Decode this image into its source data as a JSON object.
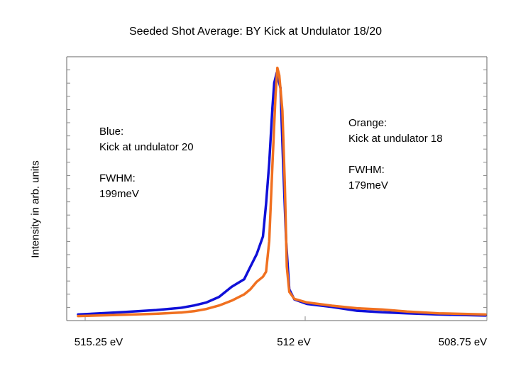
{
  "chart_data": {
    "type": "line",
    "title": "Seeded Shot Average: BY Kick at Undulator 18/20",
    "xlabel": "",
    "ylabel": "Intensity in arb. units",
    "xlim": [
      515.25,
      508.75
    ],
    "ylim": [
      0,
      1
    ],
    "x_tick_labels": [
      "515.25 eV",
      "512 eV",
      "508.75 eV"
    ],
    "grid": false,
    "series": [
      {
        "color": "#1010d8",
        "x": [
          515.25,
          514.5,
          514.0,
          513.6,
          513.4,
          513.2,
          513.0,
          512.8,
          512.6,
          512.5,
          512.4,
          512.3,
          512.25,
          512.2,
          512.15,
          512.12,
          512.08,
          512.02,
          511.98,
          511.93,
          511.88,
          511.8,
          511.6,
          511.2,
          510.8,
          510.4,
          510.0,
          509.5,
          508.75
        ],
        "values": [
          0.01,
          0.02,
          0.028,
          0.037,
          0.046,
          0.058,
          0.08,
          0.12,
          0.15,
          0.2,
          0.25,
          0.32,
          0.45,
          0.61,
          0.83,
          0.93,
          0.97,
          0.91,
          0.62,
          0.3,
          0.11,
          0.07,
          0.052,
          0.04,
          0.025,
          0.019,
          0.015,
          0.01,
          0.006
        ]
      },
      {
        "color": "#f07020",
        "x": [
          515.25,
          514.5,
          514.0,
          513.6,
          513.4,
          513.2,
          513.0,
          512.8,
          512.6,
          512.5,
          512.4,
          512.3,
          512.25,
          512.2,
          512.15,
          512.1,
          512.07,
          512.04,
          511.99,
          511.95,
          511.92,
          511.88,
          511.8,
          511.6,
          511.2,
          510.8,
          510.4,
          510.0,
          509.5,
          508.75
        ],
        "values": [
          0.004,
          0.009,
          0.013,
          0.018,
          0.023,
          0.032,
          0.046,
          0.065,
          0.09,
          0.11,
          0.14,
          0.16,
          0.18,
          0.3,
          0.6,
          0.88,
          0.99,
          0.96,
          0.82,
          0.52,
          0.2,
          0.1,
          0.072,
          0.058,
          0.045,
          0.035,
          0.03,
          0.022,
          0.015,
          0.01
        ]
      }
    ]
  },
  "annotations": {
    "blue_lines": [
      "Blue:",
      "Kick at undulator 20",
      "",
      "FWHM:",
      "199meV"
    ],
    "orange_lines": [
      "Orange:",
      "Kick at undulator 18",
      "",
      "FWHM:",
      "179meV"
    ]
  }
}
